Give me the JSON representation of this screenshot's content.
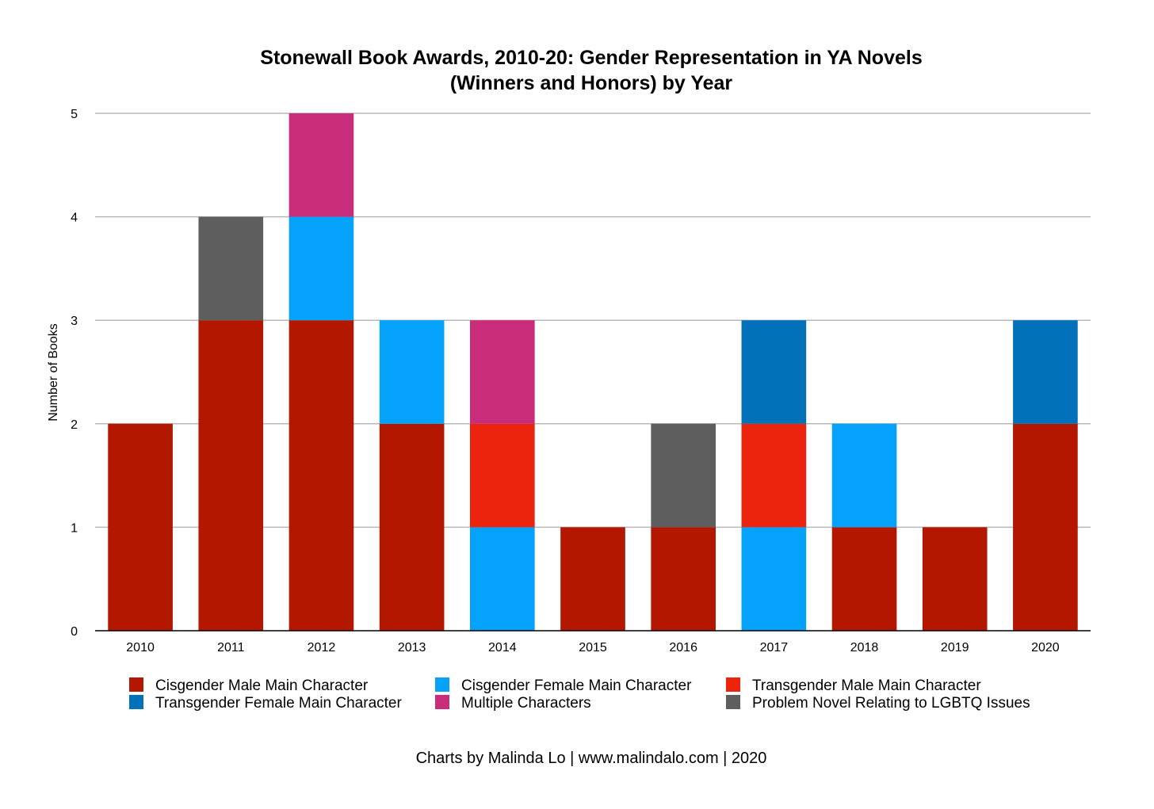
{
  "chart_data": {
    "type": "bar",
    "stacked": true,
    "title": [
      "Stonewall Book Awards, 2010-20: Gender Representation in YA Novels",
      "(Winners and Honors) by Year"
    ],
    "xlabel": "",
    "ylabel": "Number of Books",
    "ylim": [
      0,
      5
    ],
    "yticks": [
      "0",
      "1",
      "2",
      "3",
      "4",
      "5"
    ],
    "grid": true,
    "legend_position": "bottom",
    "categories": [
      "2010",
      "2011",
      "2012",
      "2013",
      "2014",
      "2015",
      "2016",
      "2017",
      "2018",
      "2019",
      "2020"
    ],
    "series": [
      {
        "name": "Cisgender Male Main Character",
        "color": "#B31700",
        "values": [
          2,
          3,
          3,
          2,
          0,
          1,
          1,
          0,
          1,
          1,
          2
        ]
      },
      {
        "name": "Cisgender Female Main Character",
        "color": "#05A2FC",
        "values": [
          0,
          0,
          1,
          1,
          1,
          0,
          0,
          1,
          1,
          0,
          0
        ]
      },
      {
        "name": "Transgender Male Main Character",
        "color": "#EC230D",
        "values": [
          0,
          0,
          0,
          0,
          1,
          0,
          0,
          1,
          0,
          0,
          0
        ]
      },
      {
        "name": "Transgender Female Main Character",
        "color": "#0172B9",
        "values": [
          0,
          0,
          0,
          0,
          0,
          0,
          0,
          1,
          0,
          0,
          1
        ]
      },
      {
        "name": "Multiple Characters",
        "color": "#C92C7A",
        "values": [
          0,
          0,
          1,
          0,
          1,
          0,
          0,
          0,
          0,
          0,
          0
        ]
      },
      {
        "name": "Problem Novel Relating to LGBTQ Issues",
        "color": "#5E5E5E",
        "values": [
          0,
          1,
          0,
          0,
          0,
          0,
          1,
          0,
          0,
          0,
          0
        ]
      }
    ],
    "stack_order": [
      [
        "Cisgender Male Main Character"
      ],
      [
        "Cisgender Male Main Character",
        "Problem Novel Relating to LGBTQ Issues"
      ],
      [
        "Cisgender Male Main Character",
        "Cisgender Female Main Character",
        "Multiple Characters"
      ],
      [
        "Cisgender Male Main Character",
        "Cisgender Female Main Character"
      ],
      [
        "Cisgender Female Main Character",
        "Transgender Male Main Character",
        "Multiple Characters"
      ],
      [
        "Cisgender Male Main Character"
      ],
      [
        "Cisgender Male Main Character",
        "Problem Novel Relating to LGBTQ Issues"
      ],
      [
        "Cisgender Female Main Character",
        "Transgender Male Main Character",
        "Transgender Female Main Character"
      ],
      [
        "Cisgender Male Main Character",
        "Cisgender Female Main Character"
      ],
      [
        "Cisgender Male Main Character"
      ],
      [
        "Cisgender Male Main Character",
        "Transgender Female Main Character"
      ]
    ],
    "legend_order": [
      "Cisgender Male Main Character",
      "Cisgender Female Main Character",
      "Transgender Male Main Character",
      "Transgender Female Main Character",
      "Multiple Characters",
      "Problem Novel Relating to LGBTQ Issues"
    ]
  },
  "footer": "Charts by Malinda Lo | www.malindalo.com | 2020"
}
